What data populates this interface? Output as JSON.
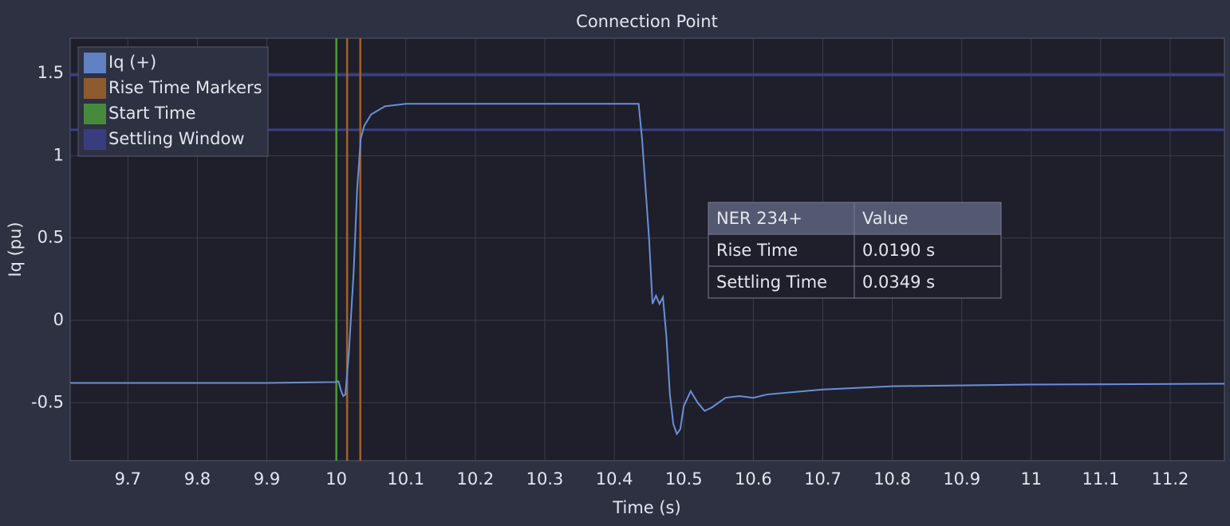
{
  "chart_data": {
    "type": "line",
    "title": "Connection Point",
    "x_label": "Time (s)",
    "y_label": "Iq (pu)",
    "xlim": [
      9.617,
      11.278
    ],
    "ylim": [
      -0.852,
      1.713
    ],
    "xticks": [
      9.7,
      9.8,
      9.9,
      10,
      10.1,
      10.2,
      10.3,
      10.4,
      10.5,
      10.6,
      10.7,
      10.8,
      10.9,
      11,
      11.1,
      11.2
    ],
    "yticks": [
      -0.5,
      0,
      0.5,
      1,
      1.5
    ],
    "grid": true,
    "legend": "top-left",
    "series": [
      {
        "name": "Iq (+)",
        "color": "#6a8fd8",
        "x": [
          9.617,
          9.9,
          9.998,
          10.003,
          10.007,
          10.01,
          10.013,
          10.018,
          10.025,
          10.03,
          10.035,
          10.04,
          10.05,
          10.07,
          10.1,
          10.2,
          10.435,
          10.44,
          10.45,
          10.455,
          10.46,
          10.465,
          10.47,
          10.475,
          10.48,
          10.485,
          10.49,
          10.495,
          10.5,
          10.51,
          10.52,
          10.53,
          10.54,
          10.56,
          10.58,
          10.6,
          10.62,
          10.7,
          10.8,
          11.0,
          11.278
        ],
        "values": [
          -0.38,
          -0.38,
          -0.375,
          -0.37,
          -0.43,
          -0.46,
          -0.45,
          -0.2,
          0.3,
          0.8,
          1.1,
          1.18,
          1.25,
          1.3,
          1.315,
          1.315,
          1.315,
          1.1,
          0.5,
          0.1,
          0.15,
          0.1,
          0.14,
          -0.1,
          -0.45,
          -0.63,
          -0.69,
          -0.66,
          -0.52,
          -0.43,
          -0.5,
          -0.55,
          -0.53,
          -0.47,
          -0.46,
          -0.47,
          -0.45,
          -0.42,
          -0.4,
          -0.39,
          -0.385
        ]
      },
      {
        "name": "Rise Time Markers",
        "color": "#a0622d",
        "vlines": [
          10.0155,
          10.0345
        ]
      },
      {
        "name": "Start Time",
        "color": "#4e9a3a",
        "vlines": [
          10.0
        ]
      },
      {
        "name": "Settling Window",
        "color": "#3c3f8a",
        "hlines": [
          1.49,
          1.157
        ]
      }
    ]
  },
  "table": {
    "header": [
      "NER 234+",
      "Value"
    ],
    "rows": [
      [
        "Rise Time",
        "0.0190 s"
      ],
      [
        "Settling Time",
        "0.0349 s"
      ]
    ]
  }
}
